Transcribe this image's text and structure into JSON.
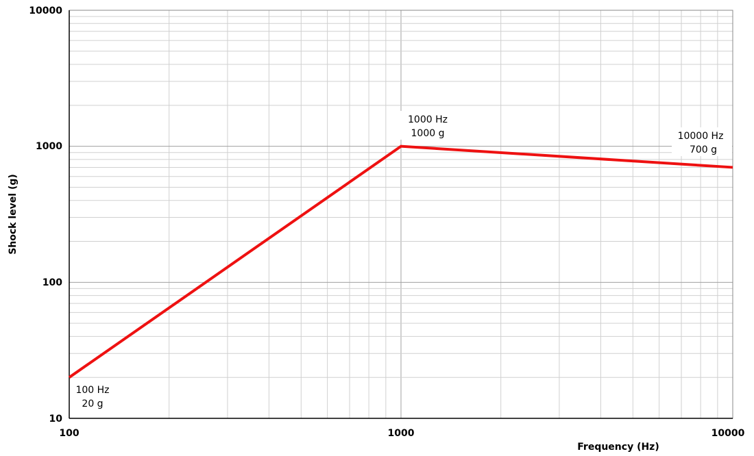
{
  "chart_data": {
    "type": "line",
    "xscale": "log",
    "yscale": "log",
    "xlim": [
      100,
      10000
    ],
    "ylim": [
      10,
      10000
    ],
    "xticks": [
      "100",
      "1000",
      "10000"
    ],
    "yticks": [
      "10",
      "100",
      "1000",
      "10000"
    ],
    "xlabel": "Frequency (Hz)",
    "ylabel": "Shock level (g)",
    "grid": true,
    "line_color": "#ee1111",
    "series": [
      {
        "x": [
          100,
          1000,
          10000
        ],
        "y": [
          20,
          1000,
          700
        ]
      }
    ],
    "annotations": [
      {
        "line1": "100 Hz",
        "line2": "20 g"
      },
      {
        "line1": "1000 Hz",
        "line2": "1000 g"
      },
      {
        "line1": "10000 Hz",
        "line2": "700 g"
      }
    ]
  }
}
